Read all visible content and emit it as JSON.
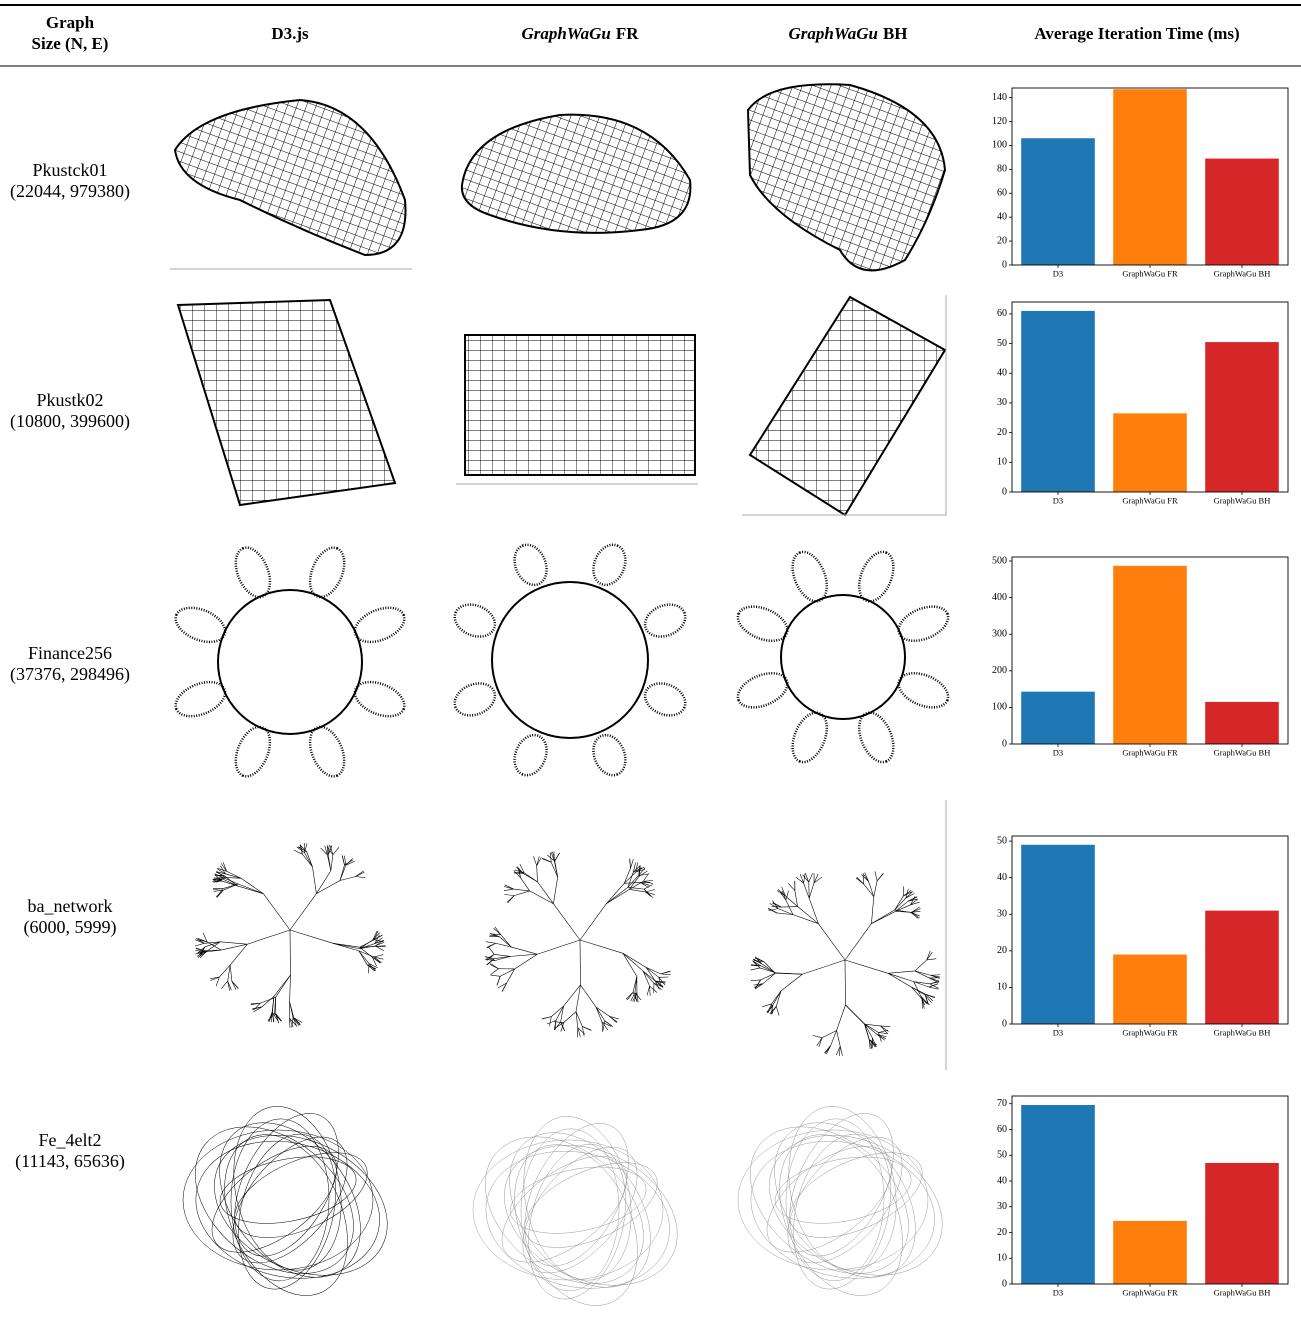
{
  "table": {
    "header": {
      "graph": [
        "Graph",
        "Size (N, E)"
      ],
      "d3": "D3.js",
      "fr": {
        "italic": "GraphWaGu",
        "text": "FR"
      },
      "bh": {
        "italic": "GraphWaGu",
        "text": "BH"
      },
      "time": "Average Iteration Time (ms)"
    },
    "rows": [
      {
        "name": "Pkustck01",
        "size": "(22044, 979380)"
      },
      {
        "name": "Pkustk02",
        "size": "(10800, 399600)"
      },
      {
        "name": "Finance256",
        "size": "(37376, 298496)"
      },
      {
        "name": "ba_network",
        "size": "(6000, 5999)"
      },
      {
        "name": "Fe_4elt2",
        "size": "(11143, 65636)"
      }
    ]
  },
  "chart_data": [
    {
      "type": "bar",
      "categories": [
        "D3",
        "GraphWaGu FR",
        "GraphWaGu BH"
      ],
      "values": [
        106,
        147,
        89
      ],
      "colors": [
        "#1f77b4",
        "#ff7f0e",
        "#d62728"
      ],
      "ylim": [
        0,
        148
      ],
      "yticks": [
        0,
        20,
        40,
        60,
        80,
        100,
        120,
        140
      ]
    },
    {
      "type": "bar",
      "categories": [
        "D3",
        "GraphWaGu FR",
        "GraphWaGu BH"
      ],
      "values": [
        61,
        26.5,
        50.5
      ],
      "colors": [
        "#1f77b4",
        "#ff7f0e",
        "#d62728"
      ],
      "ylim": [
        0,
        64
      ],
      "yticks": [
        0,
        10,
        20,
        30,
        40,
        50,
        60
      ]
    },
    {
      "type": "bar",
      "categories": [
        "D3",
        "GraphWaGu FR",
        "GraphWaGu BH"
      ],
      "values": [
        143,
        487,
        115
      ],
      "colors": [
        "#1f77b4",
        "#ff7f0e",
        "#d62728"
      ],
      "ylim": [
        0,
        511
      ],
      "yticks": [
        0,
        100,
        200,
        300,
        400,
        500
      ]
    },
    {
      "type": "bar",
      "categories": [
        "D3",
        "GraphWaGu FR",
        "GraphWaGu BH"
      ],
      "values": [
        49,
        19,
        31
      ],
      "colors": [
        "#1f77b4",
        "#ff7f0e",
        "#d62728"
      ],
      "ylim": [
        0,
        51.4
      ],
      "yticks": [
        0,
        10,
        20,
        30,
        40,
        50
      ]
    },
    {
      "type": "bar",
      "categories": [
        "D3",
        "GraphWaGu FR",
        "GraphWaGu BH"
      ],
      "values": [
        69.5,
        24.5,
        47
      ],
      "colors": [
        "#1f77b4",
        "#ff7f0e",
        "#d62728"
      ],
      "ylim": [
        0,
        73
      ],
      "yticks": [
        0,
        10,
        20,
        30,
        40,
        50,
        60,
        70
      ]
    }
  ]
}
